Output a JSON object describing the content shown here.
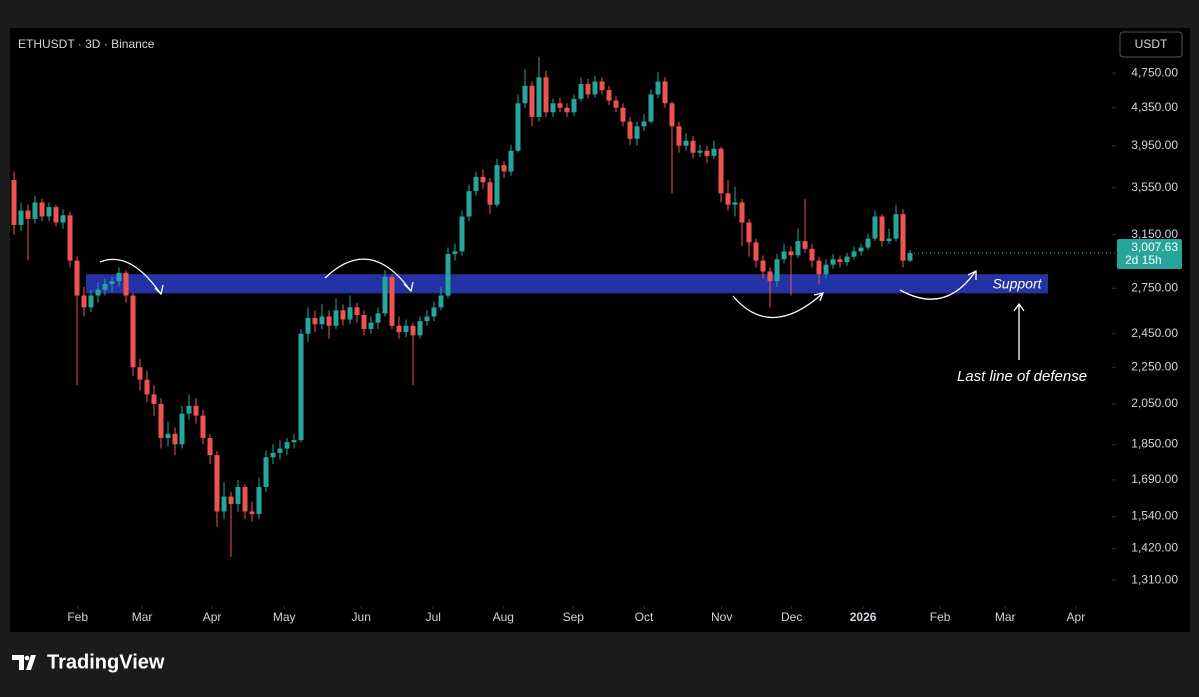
{
  "chart_data": {
    "type": "candlestick",
    "title": "ETHUSDT · 3D · Binance",
    "currency": "USDT",
    "log_scale": true,
    "up_color": "#26a69a",
    "down_color": "#ef5350",
    "ylim": [
      1230,
      5300
    ],
    "yticks": [
      {
        "value": 4750,
        "label": "4,750.00"
      },
      {
        "value": 4350,
        "label": "4,350.00"
      },
      {
        "value": 3950,
        "label": "3,950.00"
      },
      {
        "value": 3550,
        "label": "3,550.00"
      },
      {
        "value": 3150,
        "label": "3,150.00"
      },
      {
        "value": 2750,
        "label": "2,750.00"
      },
      {
        "value": 2450,
        "label": "2,450.00"
      },
      {
        "value": 2250,
        "label": "2,250.00"
      },
      {
        "value": 2050,
        "label": "2,050.00"
      },
      {
        "value": 1850,
        "label": "1,850.00"
      },
      {
        "value": 1690,
        "label": "1,690.00"
      },
      {
        "value": 1540,
        "label": "1,540.00"
      },
      {
        "value": 1420,
        "label": "1,420.00"
      },
      {
        "value": 1310,
        "label": "1,310.00"
      }
    ],
    "xticks": [
      {
        "value": 9.1,
        "label": "Feb"
      },
      {
        "value": 18.3,
        "label": "Mar"
      },
      {
        "value": 28.3,
        "label": "Apr"
      },
      {
        "value": 38.6,
        "label": "May"
      },
      {
        "value": 49.6,
        "label": "Jun"
      },
      {
        "value": 59.9,
        "label": "Jul"
      },
      {
        "value": 69.9,
        "label": "Aug"
      },
      {
        "value": 79.9,
        "label": "Sep"
      },
      {
        "value": 90,
        "label": "Oct"
      },
      {
        "value": 101.1,
        "label": "Nov"
      },
      {
        "value": 111.1,
        "label": "Dec"
      },
      {
        "value": 121.3,
        "label": "2026"
      },
      {
        "value": 132.3,
        "label": "Feb"
      },
      {
        "value": 141.6,
        "label": "Mar"
      },
      {
        "value": 151.7,
        "label": "Apr"
      }
    ],
    "candles": [
      [
        3620,
        3700,
        3150,
        3230
      ],
      [
        3230,
        3420,
        3180,
        3350
      ],
      [
        3350,
        3400,
        2950,
        3280
      ],
      [
        3280,
        3480,
        3240,
        3420
      ],
      [
        3420,
        3450,
        3260,
        3300
      ],
      [
        3300,
        3420,
        3260,
        3380
      ],
      [
        3380,
        3400,
        3220,
        3250
      ],
      [
        3250,
        3360,
        3200,
        3310
      ],
      [
        3310,
        3340,
        2900,
        2950
      ],
      [
        2950,
        2980,
        2150,
        2700
      ],
      [
        2700,
        2760,
        2560,
        2620
      ],
      [
        2620,
        2740,
        2590,
        2700
      ],
      [
        2700,
        2790,
        2650,
        2740
      ],
      [
        2740,
        2820,
        2700,
        2780
      ],
      [
        2780,
        2830,
        2720,
        2800
      ],
      [
        2800,
        2900,
        2760,
        2860
      ],
      [
        2860,
        2880,
        2650,
        2700
      ],
      [
        2700,
        2720,
        2200,
        2250
      ],
      [
        2250,
        2300,
        2120,
        2180
      ],
      [
        2180,
        2230,
        2060,
        2100
      ],
      [
        2100,
        2150,
        1990,
        2050
      ],
      [
        2050,
        2080,
        1830,
        1880
      ],
      [
        1880,
        1960,
        1840,
        1900
      ],
      [
        1900,
        1930,
        1800,
        1850
      ],
      [
        1850,
        2040,
        1830,
        2000
      ],
      [
        2000,
        2100,
        1970,
        2040
      ],
      [
        2040,
        2080,
        1950,
        1990
      ],
      [
        1990,
        2020,
        1850,
        1880
      ],
      [
        1880,
        1900,
        1760,
        1800
      ],
      [
        1800,
        1820,
        1500,
        1560
      ],
      [
        1560,
        1680,
        1530,
        1620
      ],
      [
        1620,
        1640,
        1390,
        1590
      ],
      [
        1590,
        1690,
        1560,
        1660
      ],
      [
        1660,
        1670,
        1530,
        1560
      ],
      [
        1560,
        1600,
        1520,
        1550
      ],
      [
        1550,
        1700,
        1530,
        1660
      ],
      [
        1660,
        1820,
        1640,
        1790
      ],
      [
        1790,
        1850,
        1760,
        1810
      ],
      [
        1810,
        1870,
        1780,
        1830
      ],
      [
        1830,
        1880,
        1800,
        1860
      ],
      [
        1860,
        1900,
        1830,
        1870
      ],
      [
        1870,
        2480,
        1860,
        2450
      ],
      [
        2450,
        2620,
        2400,
        2550
      ],
      [
        2550,
        2600,
        2460,
        2510
      ],
      [
        2510,
        2640,
        2480,
        2560
      ],
      [
        2560,
        2600,
        2420,
        2500
      ],
      [
        2500,
        2680,
        2480,
        2600
      ],
      [
        2600,
        2640,
        2500,
        2540
      ],
      [
        2540,
        2700,
        2510,
        2620
      ],
      [
        2620,
        2650,
        2520,
        2570
      ],
      [
        2570,
        2600,
        2440,
        2480
      ],
      [
        2480,
        2560,
        2450,
        2520
      ],
      [
        2520,
        2620,
        2480,
        2580
      ],
      [
        2580,
        2880,
        2560,
        2830
      ],
      [
        2830,
        2850,
        2480,
        2500
      ],
      [
        2500,
        2560,
        2420,
        2460
      ],
      [
        2460,
        2540,
        2430,
        2500
      ],
      [
        2500,
        2520,
        2150,
        2440
      ],
      [
        2440,
        2560,
        2420,
        2530
      ],
      [
        2530,
        2600,
        2500,
        2560
      ],
      [
        2560,
        2660,
        2530,
        2620
      ],
      [
        2620,
        2760,
        2600,
        2700
      ],
      [
        2700,
        3050,
        2680,
        3000
      ],
      [
        3000,
        3080,
        2950,
        3020
      ],
      [
        3020,
        3350,
        2990,
        3300
      ],
      [
        3300,
        3580,
        3260,
        3520
      ],
      [
        3520,
        3700,
        3480,
        3650
      ],
      [
        3650,
        3720,
        3540,
        3600
      ],
      [
        3600,
        3640,
        3320,
        3400
      ],
      [
        3400,
        3820,
        3380,
        3760
      ],
      [
        3760,
        3800,
        3640,
        3700
      ],
      [
        3700,
        3960,
        3660,
        3900
      ],
      [
        3900,
        4500,
        3880,
        4400
      ],
      [
        4400,
        4800,
        4350,
        4600
      ],
      [
        4600,
        4650,
        4150,
        4250
      ],
      [
        4250,
        4950,
        4200,
        4700
      ],
      [
        4700,
        4780,
        4250,
        4300
      ],
      [
        4300,
        4450,
        4250,
        4400
      ],
      [
        4400,
        4460,
        4300,
        4350
      ],
      [
        4350,
        4400,
        4250,
        4300
      ],
      [
        4300,
        4500,
        4260,
        4450
      ],
      [
        4450,
        4700,
        4420,
        4620
      ],
      [
        4620,
        4680,
        4450,
        4500
      ],
      [
        4500,
        4720,
        4460,
        4650
      ],
      [
        4650,
        4700,
        4500,
        4550
      ],
      [
        4550,
        4600,
        4380,
        4430
      ],
      [
        4430,
        4480,
        4300,
        4350
      ],
      [
        4350,
        4400,
        4150,
        4200
      ],
      [
        4200,
        4250,
        3960,
        4020
      ],
      [
        4020,
        4200,
        3950,
        4150
      ],
      [
        4150,
        4280,
        4100,
        4200
      ],
      [
        4200,
        4560,
        4180,
        4500
      ],
      [
        4500,
        4760,
        4460,
        4650
      ],
      [
        4650,
        4700,
        4350,
        4400
      ],
      [
        4400,
        4420,
        3500,
        4150
      ],
      [
        4150,
        4200,
        3880,
        3950
      ],
      [
        3950,
        4080,
        3900,
        4000
      ],
      [
        4000,
        4050,
        3820,
        3880
      ],
      [
        3880,
        3960,
        3840,
        3900
      ],
      [
        3900,
        3950,
        3780,
        3850
      ],
      [
        3850,
        4000,
        3820,
        3920
      ],
      [
        3920,
        3940,
        3420,
        3500
      ],
      [
        3500,
        3620,
        3350,
        3400
      ],
      [
        3400,
        3560,
        3300,
        3420
      ],
      [
        3420,
        3450,
        3060,
        3250
      ],
      [
        3250,
        3280,
        2980,
        3090
      ],
      [
        3090,
        3120,
        2900,
        2950
      ],
      [
        2950,
        2990,
        2820,
        2870
      ],
      [
        2870,
        2900,
        2620,
        2800
      ],
      [
        2800,
        3000,
        2760,
        2960
      ],
      [
        2960,
        3080,
        2930,
        3020
      ],
      [
        3020,
        3060,
        2700,
        2990
      ],
      [
        2990,
        3200,
        2970,
        3100
      ],
      [
        3100,
        3450,
        3010,
        3040
      ],
      [
        3040,
        3080,
        2900,
        2950
      ],
      [
        2950,
        2980,
        2780,
        2850
      ],
      [
        2850,
        2960,
        2820,
        2920
      ],
      [
        2920,
        3000,
        2890,
        2960
      ],
      [
        2960,
        2990,
        2900,
        2940
      ],
      [
        2940,
        3010,
        2910,
        2980
      ],
      [
        2980,
        3060,
        2960,
        3020
      ],
      [
        3020,
        3080,
        2990,
        3050
      ],
      [
        3050,
        3160,
        3030,
        3120
      ],
      [
        3120,
        3350,
        3100,
        3300
      ],
      [
        3300,
        3320,
        3060,
        3100
      ],
      [
        3100,
        3200,
        3080,
        3120
      ],
      [
        3120,
        3400,
        3100,
        3320
      ],
      [
        3320,
        3360,
        2900,
        2950
      ],
      [
        2950,
        3030,
        2940,
        3007.63
      ]
    ],
    "last_price": {
      "value": 3007.63,
      "label": "3,007.63"
    },
    "countdown": "2d 15h",
    "support_zone": {
      "range": [
        2715,
        2850
      ],
      "label": "Support",
      "color": "#2333a6"
    },
    "annotation": "Last line of defense",
    "brand": "TradingView"
  }
}
